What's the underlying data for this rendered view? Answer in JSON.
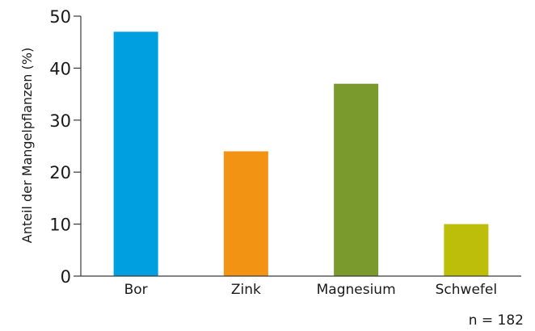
{
  "chart_data": {
    "type": "bar",
    "title": "",
    "xlabel": "",
    "ylabel": "Anteil der Mangelpflanzen (%)",
    "categories": [
      "Bor",
      "Zink",
      "Magnesium",
      "Schwefel"
    ],
    "values": [
      47,
      24,
      37,
      10
    ],
    "colors": [
      "#009fe0",
      "#f39314",
      "#7a9a2e",
      "#bdbe0a"
    ],
    "ylim": [
      0,
      50
    ],
    "yticks": [
      0,
      10,
      20,
      30,
      40,
      50
    ],
    "grid": false,
    "legend": "none",
    "annotation": "n = 182"
  }
}
